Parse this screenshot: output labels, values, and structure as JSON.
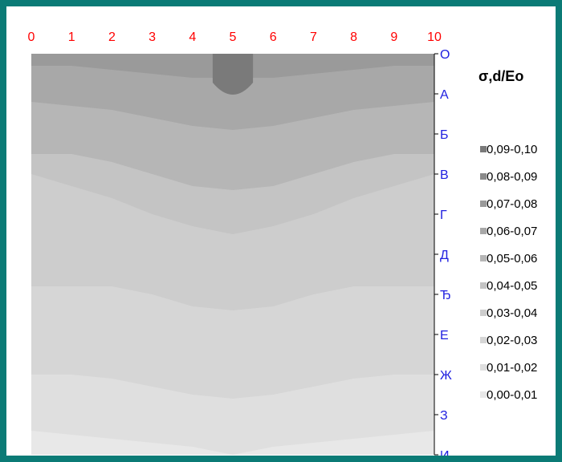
{
  "chart_data": {
    "type": "heatmap",
    "title": "",
    "legend_title": "σ,d/Eo",
    "x_ticks": [
      "0",
      "1",
      "2",
      "3",
      "4",
      "5",
      "6",
      "7",
      "8",
      "9",
      "10"
    ],
    "y_ticks": [
      "О",
      "А",
      "Б",
      "В",
      "Г",
      "Д",
      "Ђ",
      "Е",
      "Ж",
      "З",
      "И"
    ],
    "xlim": [
      0,
      10
    ],
    "legend_position": "right",
    "levels": [
      {
        "label": "0,09-0,10",
        "min": 0.09,
        "max": 0.1,
        "color": "#7a7a7a"
      },
      {
        "label": "0,08-0,09",
        "min": 0.08,
        "max": 0.09,
        "color": "#8a8a8a"
      },
      {
        "label": "0,07-0,08",
        "min": 0.07,
        "max": 0.08,
        "color": "#9a9a9a"
      },
      {
        "label": "0,06-0,07",
        "min": 0.06,
        "max": 0.07,
        "color": "#a8a8a8"
      },
      {
        "label": "0,05-0,06",
        "min": 0.05,
        "max": 0.06,
        "color": "#b6b6b6"
      },
      {
        "label": "0,04-0,05",
        "min": 0.04,
        "max": 0.05,
        "color": "#c4c4c4"
      },
      {
        "label": "0,03-0,04",
        "min": 0.03,
        "max": 0.04,
        "color": "#cdcdcd"
      },
      {
        "label": "0,02-0,03",
        "min": 0.02,
        "max": 0.03,
        "color": "#d6d6d6"
      },
      {
        "label": "0,01-0,02",
        "min": 0.01,
        "max": 0.02,
        "color": "#dfdfdf"
      },
      {
        "label": "0,00-0,01",
        "min": 0.0,
        "max": 0.01,
        "color": "#e8e8e8"
      }
    ],
    "level_boundaries": [
      {
        "level": "0,08-0,09",
        "y_by_x": [
          0.0,
          0.0,
          0.0,
          0.0,
          0.0,
          0.0,
          0.0,
          0.0,
          0.0,
          0.0,
          0.0
        ]
      },
      {
        "level": "0,07-0,08",
        "y_by_x": [
          0.0,
          0.0,
          0.0,
          0.0,
          0.0,
          0.0,
          0.0,
          0.0,
          0.0,
          0.0,
          0.0
        ]
      },
      {
        "level": "0,06-0,07",
        "y_by_x": [
          0.3,
          0.3,
          0.4,
          0.5,
          0.6,
          0.6,
          0.6,
          0.5,
          0.4,
          0.3,
          0.3
        ]
      },
      {
        "level": "0,05-0,06",
        "y_by_x": [
          1.2,
          1.3,
          1.4,
          1.6,
          1.8,
          1.9,
          1.8,
          1.6,
          1.4,
          1.3,
          1.2
        ]
      },
      {
        "level": "0,04-0,05",
        "y_by_x": [
          2.5,
          2.5,
          2.7,
          3.0,
          3.3,
          3.4,
          3.3,
          3.0,
          2.7,
          2.5,
          2.5
        ]
      },
      {
        "level": "0,03-0,04",
        "y_by_x": [
          3.0,
          3.3,
          3.6,
          4.0,
          4.3,
          4.5,
          4.3,
          4.0,
          3.6,
          3.3,
          3.0
        ]
      },
      {
        "level": "0,02-0,03",
        "y_by_x": [
          5.8,
          5.8,
          5.8,
          6.0,
          6.3,
          6.4,
          6.3,
          6.0,
          5.8,
          5.8,
          5.8
        ]
      },
      {
        "level": "0,01-0,02",
        "y_by_x": [
          8.0,
          8.0,
          8.1,
          8.3,
          8.5,
          8.6,
          8.5,
          8.3,
          8.1,
          8.0,
          8.0
        ]
      },
      {
        "level": "0,00-0,01",
        "y_by_x": [
          9.4,
          9.5,
          9.6,
          9.7,
          9.8,
          10.0,
          9.8,
          9.7,
          9.6,
          9.5,
          9.4
        ]
      }
    ],
    "peak_region": {
      "level": "0,09-0,10",
      "x_range": [
        4.5,
        5.5
      ],
      "y_max": 1.2
    }
  }
}
